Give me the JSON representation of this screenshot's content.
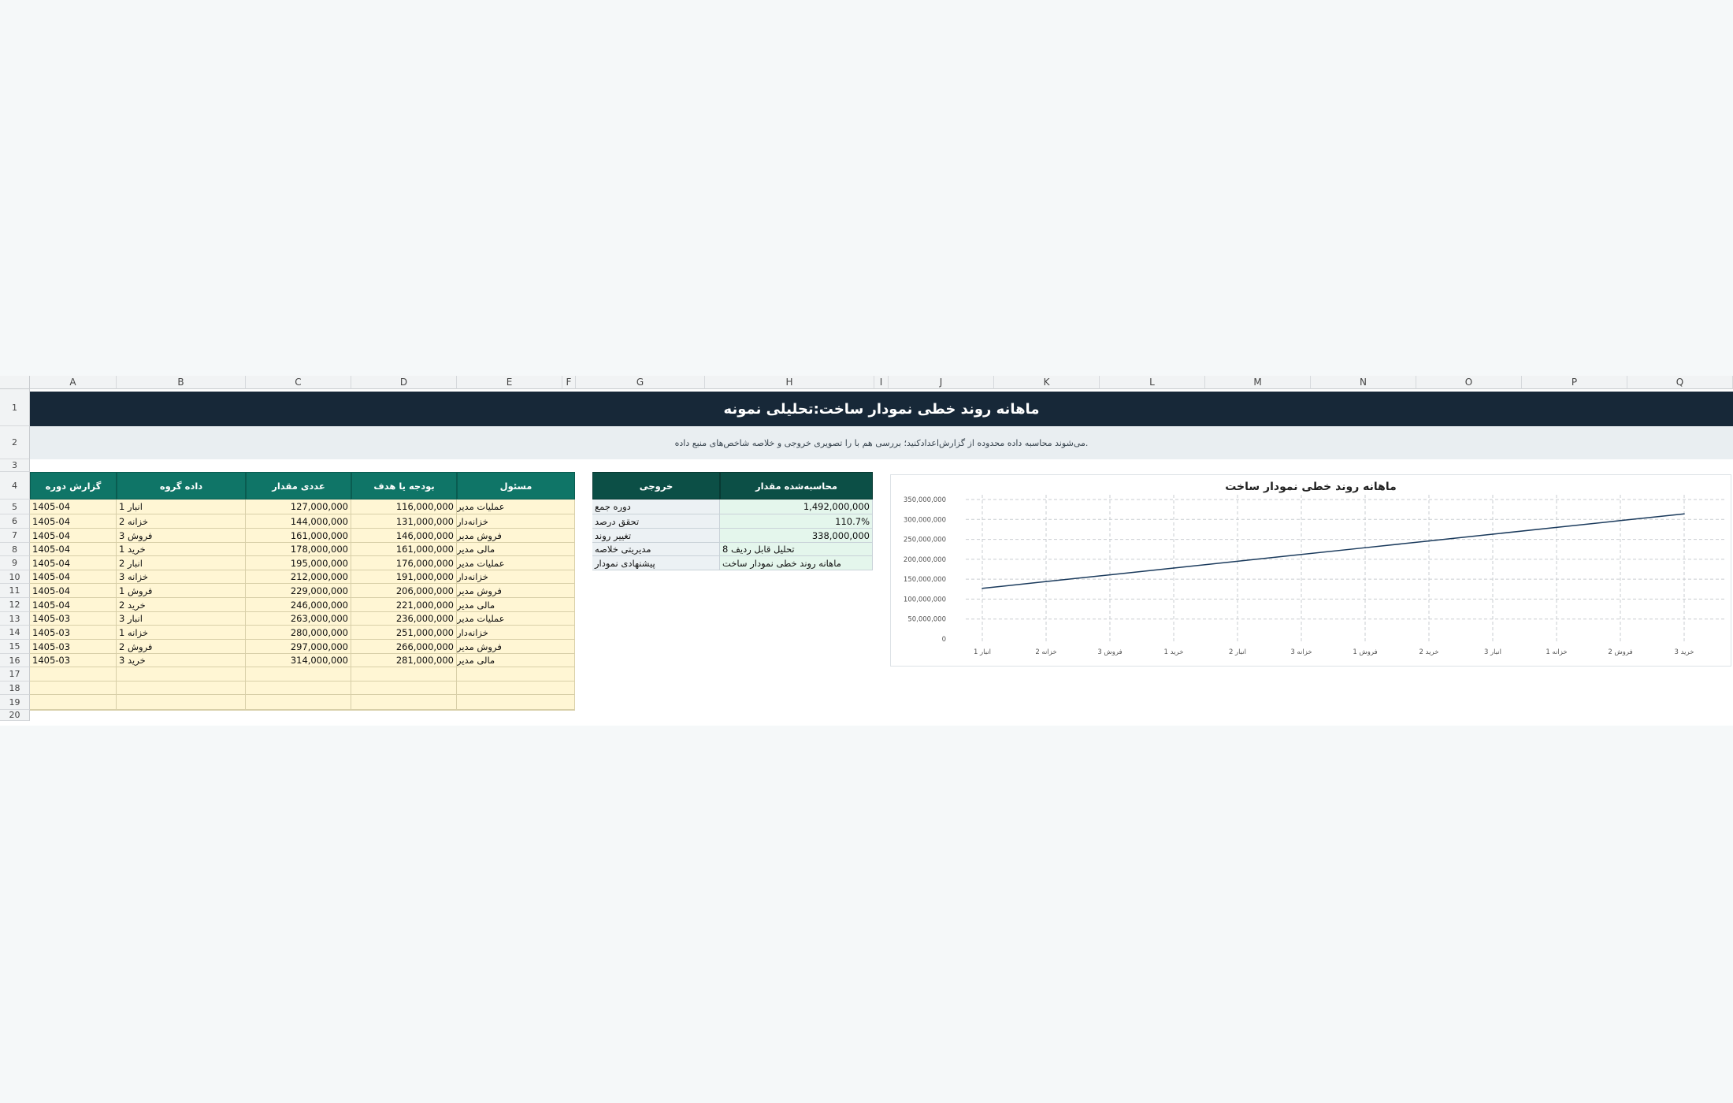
{
  "sheet": {
    "columns": [
      "A",
      "B",
      "C",
      "D",
      "E",
      "F",
      "G",
      "H",
      "I",
      "J",
      "K",
      "L",
      "M",
      "N",
      "O",
      "P",
      "Q"
    ],
    "rows": [
      "1",
      "2",
      "3",
      "4",
      "5",
      "6",
      "7",
      "8",
      "9",
      "10",
      "11",
      "12",
      "13",
      "14",
      "15",
      "16",
      "17",
      "18",
      "19",
      "20"
    ]
  },
  "title": "ماهانه روند خطی نمودار ساخت:تحلیلی نمونه",
  "subtitle": ".می‌شوند محاسبه داده محدوده از گزارش‌اعدادکنید؛ بررسی هم با را تصویری خروجی و خلاصه شاخص‌های منبع داده",
  "table": {
    "headers": [
      "گزارش دوره",
      "داده گروه",
      "عددی مقدار",
      "بودجه یا هدف",
      "مسئول"
    ],
    "rows": [
      [
        "1405-04",
        "انبار 1",
        "127,000,000",
        "116,000,000",
        "عملیات مدیر"
      ],
      [
        "1405-04",
        "خزانه 2",
        "144,000,000",
        "131,000,000",
        "خزانه‌دار"
      ],
      [
        "1405-04",
        "فروش 3",
        "161,000,000",
        "146,000,000",
        "فروش مدیر"
      ],
      [
        "1405-04",
        "خرید 1",
        "178,000,000",
        "161,000,000",
        "مالی مدیر"
      ],
      [
        "1405-04",
        "انبار 2",
        "195,000,000",
        "176,000,000",
        "عملیات مدیر"
      ],
      [
        "1405-04",
        "خزانه 3",
        "212,000,000",
        "191,000,000",
        "خزانه‌دار"
      ],
      [
        "1405-04",
        "فروش 1",
        "229,000,000",
        "206,000,000",
        "فروش مدیر"
      ],
      [
        "1405-04",
        "خرید 2",
        "246,000,000",
        "221,000,000",
        "مالی مدیر"
      ],
      [
        "1405-03",
        "انبار 3",
        "263,000,000",
        "236,000,000",
        "عملیات مدیر"
      ],
      [
        "1405-03",
        "خزانه 1",
        "280,000,000",
        "251,000,000",
        "خزانه‌دار"
      ],
      [
        "1405-03",
        "فروش 2",
        "297,000,000",
        "266,000,000",
        "فروش مدیر"
      ],
      [
        "1405-03",
        "خرید 3",
        "314,000,000",
        "281,000,000",
        "مالی مدیر"
      ]
    ],
    "empty_rows": 4
  },
  "summary": {
    "headers": [
      "خروجی",
      "محاسبه‌شده مقدار"
    ],
    "rows": [
      [
        "دوره جمع",
        "1,492,000,000"
      ],
      [
        "تحقق درصد",
        "110.7%"
      ],
      [
        "تغییر روند",
        "338,000,000"
      ],
      [
        "مدیریتی خلاصه",
        "تحلیل قابل ردیف 8"
      ],
      [
        "پیشنهادی نمودار",
        "ماهانه روند خطی نمودار ساخت"
      ]
    ]
  },
  "chart_data": {
    "type": "line",
    "title": "ماهانه روند خطی نمودار ساخت",
    "categories": [
      "انبار 1",
      "خزانه 2",
      "فروش 3",
      "خرید 1",
      "انبار 2",
      "خزانه 3",
      "فروش 1",
      "خرید 2",
      "انبار 3",
      "خزانه 1",
      "فروش 2",
      "خرید 3"
    ],
    "series": [
      {
        "values": [
          127000000,
          144000000,
          161000000,
          178000000,
          195000000,
          212000000,
          229000000,
          246000000,
          263000000,
          280000000,
          297000000,
          314000000
        ]
      }
    ],
    "ylim": [
      0,
      350000000
    ],
    "yticks": [
      "0",
      "50,000,000",
      "100,000,000",
      "150,000,000",
      "200,000,000",
      "250,000,000",
      "300,000,000",
      "350,000,000"
    ],
    "grid": true,
    "line_color": "#1a3a5c"
  }
}
